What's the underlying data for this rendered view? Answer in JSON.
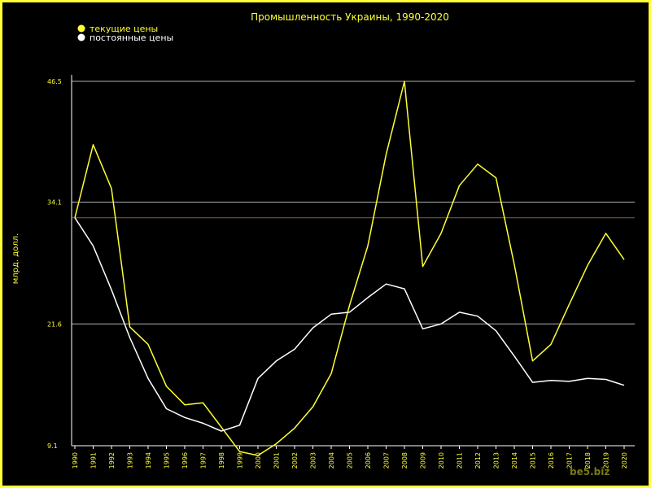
{
  "chart_data": {
    "type": "line",
    "title": "Промышленность Украины, 1990-2020",
    "xlabel": "",
    "ylabel": "млрд. долл.",
    "categories": [
      "1990",
      "1991",
      "1992",
      "1993",
      "1994",
      "1995",
      "1996",
      "1997",
      "1998",
      "1999",
      "2000",
      "2001",
      "2002",
      "2003",
      "2004",
      "2005",
      "2006",
      "2007",
      "2008",
      "2009",
      "2010",
      "2011",
      "2012",
      "2013",
      "2014",
      "2015",
      "2016",
      "2017",
      "2018",
      "2019",
      "2020"
    ],
    "series": [
      {
        "name": "текущие цены",
        "color": "#ffff33",
        "values": [
          32.5,
          40.0,
          35.5,
          21.3,
          19.5,
          15.2,
          13.3,
          13.5,
          11.0,
          8.5,
          8.1,
          9.3,
          10.9,
          13.1,
          16.5,
          23.5,
          29.6,
          39.0,
          46.5,
          27.5,
          30.9,
          35.8,
          38.0,
          36.6,
          27.7,
          17.8,
          19.5,
          23.6,
          27.6,
          30.9,
          28.2
        ],
        "legend_marker": "filled-circle"
      },
      {
        "name": "постоянные цены",
        "color": "#ffffff",
        "values": [
          32.5,
          29.6,
          25.1,
          20.2,
          16.0,
          12.9,
          12.0,
          11.4,
          10.6,
          11.2,
          16.0,
          17.8,
          19.0,
          21.2,
          22.6,
          22.8,
          24.3,
          25.7,
          25.2,
          21.1,
          21.6,
          22.8,
          22.4,
          20.9,
          18.3,
          15.6,
          15.8,
          15.7,
          16.0,
          15.9,
          15.3
        ]
      }
    ],
    "y_ticks": [
      "9.1",
      "21.6",
      "34.1",
      "46.5"
    ],
    "y_tick_values": [
      9.1,
      21.6,
      34.1,
      46.5
    ],
    "ylim": [
      9.1,
      46.5
    ],
    "reference_line": {
      "value": 32.5,
      "color": "#8a5a3a"
    },
    "grid": "horizontal",
    "legend_placement": "top-left",
    "colors": {
      "background": "#000000",
      "frame": "#ffff33",
      "text": "#ffff33",
      "grid": "#b0b0b0",
      "axis": "#ffffff"
    }
  },
  "watermark": "be5.biz"
}
